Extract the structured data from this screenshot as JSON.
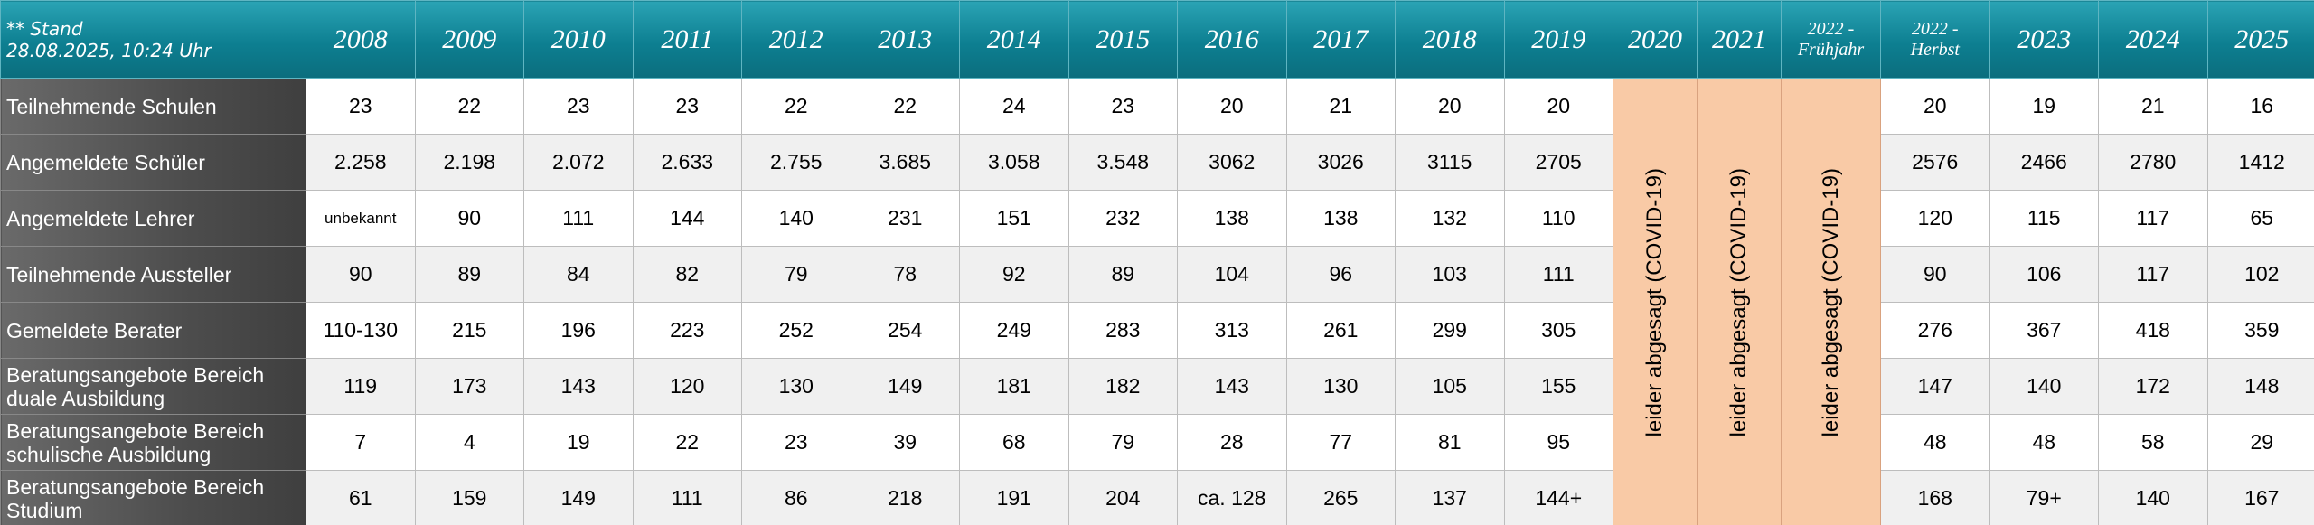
{
  "header": {
    "stand": [
      "** Stand",
      "28.08.2025, 10:24 Uhr"
    ],
    "columns": [
      {
        "header": "2008"
      },
      {
        "header": "2009"
      },
      {
        "header": "2010"
      },
      {
        "header": "2011"
      },
      {
        "header": "2012"
      },
      {
        "header": "2013"
      },
      {
        "header": "2014"
      },
      {
        "header": "2015"
      },
      {
        "header": "2016"
      },
      {
        "header": "2017"
      },
      {
        "header": "2018"
      },
      {
        "header": "2019"
      },
      {
        "header": "2020",
        "note": "leider abgesagt (COVID-19)"
      },
      {
        "header": "2021",
        "note": "leider abgesagt (COVID-19)"
      },
      {
        "header": [
          "2022 -",
          "Frühjahr"
        ],
        "note": "leider abgesagt (COVID-19)"
      },
      {
        "header": [
          "2022 -",
          "Herbst"
        ]
      },
      {
        "header": "2023"
      },
      {
        "header": "2024"
      },
      {
        "header": "2025"
      }
    ]
  },
  "table": {
    "rows": [
      {
        "label": "Teilnehmende Schulen",
        "values": [
          "23",
          "22",
          "23",
          "23",
          "22",
          "22",
          "24",
          "23",
          "20",
          "21",
          "20",
          "20",
          "20",
          "19",
          "21",
          "16"
        ]
      },
      {
        "label": "Angemeldete Schüler",
        "values": [
          "2.258",
          "2.198",
          "2.072",
          "2.633",
          "2.755",
          "3.685",
          "3.058",
          "3.548",
          "3062",
          "3026",
          "3115",
          "2705",
          "2576",
          "2466",
          "2780",
          "1412"
        ]
      },
      {
        "label": "Angemeldete Lehrer",
        "values": [
          "unbekannt",
          "90",
          "111",
          "144",
          "140",
          "231",
          "151",
          "232",
          "138",
          "138",
          "132",
          "110",
          "120",
          "115",
          "117",
          "65"
        ]
      },
      {
        "label": "Teilnehmende Aussteller",
        "values": [
          "90",
          "89",
          "84",
          "82",
          "79",
          "78",
          "92",
          "89",
          "104",
          "96",
          "103",
          "111",
          "90",
          "106",
          "117",
          "102"
        ]
      },
      {
        "label": "Gemeldete Berater",
        "values": [
          "110-130",
          "215",
          "196",
          "223",
          "252",
          "254",
          "249",
          "283",
          "313",
          "261",
          "299",
          "305",
          "276",
          "367",
          "418",
          "359"
        ]
      },
      {
        "label": "Beratungsangebote Bereich duale Ausbildung",
        "values": [
          "119",
          "173",
          "143",
          "120",
          "130",
          "149",
          "181",
          "182",
          "143",
          "130",
          "105",
          "155",
          "147",
          "140",
          "172",
          "148"
        ]
      },
      {
        "label": "Beratungsangebote Bereich schulische Ausbildung",
        "values": [
          "7",
          "4",
          "19",
          "22",
          "23",
          "39",
          "68",
          "79",
          "28",
          "77",
          "81",
          "95",
          "48",
          "48",
          "58",
          "29"
        ]
      },
      {
        "label": "Beratungsangebote Bereich Studium",
        "values": [
          "61",
          "159",
          "149",
          "111",
          "86",
          "218",
          "191",
          "204",
          "ca. 128",
          "265",
          "137",
          "144+",
          "168",
          "79+",
          "140",
          "167"
        ]
      }
    ]
  }
}
